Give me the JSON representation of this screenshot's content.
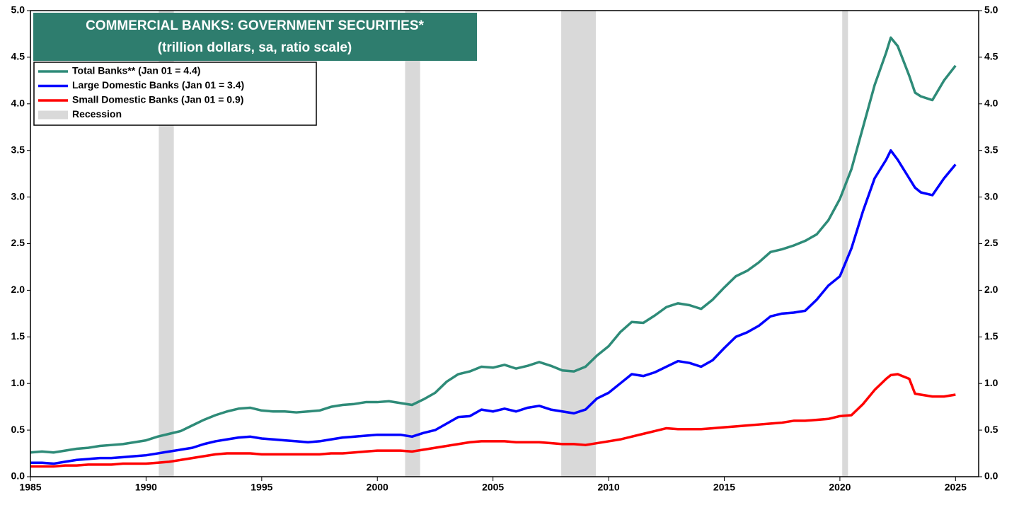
{
  "chart_data": {
    "type": "line",
    "title": "COMMERCIAL BANKS: GOVERNMENT SECURITIES*",
    "subtitle": "(trillion dollars, sa, ratio scale)",
    "x": [
      1985.0,
      1985.5,
      1986.0,
      1986.5,
      1987.0,
      1987.5,
      1988.0,
      1988.5,
      1989.0,
      1989.5,
      1990.0,
      1990.5,
      1991.0,
      1991.5,
      1992.0,
      1992.5,
      1993.0,
      1993.5,
      1994.0,
      1994.5,
      1995.0,
      1995.5,
      1996.0,
      1996.5,
      1997.0,
      1997.5,
      1998.0,
      1998.5,
      1999.0,
      1999.5,
      2000.0,
      2000.5,
      2001.0,
      2001.5,
      2002.0,
      2002.5,
      2003.0,
      2003.5,
      2004.0,
      2004.5,
      2005.0,
      2005.5,
      2006.0,
      2006.5,
      2007.0,
      2007.5,
      2008.0,
      2008.5,
      2009.0,
      2009.5,
      2010.0,
      2010.5,
      2011.0,
      2011.5,
      2012.0,
      2012.5,
      2013.0,
      2013.5,
      2014.0,
      2014.5,
      2015.0,
      2015.5,
      2016.0,
      2016.5,
      2017.0,
      2017.5,
      2018.0,
      2018.5,
      2019.0,
      2019.5,
      2020.0,
      2020.5,
      2021.0,
      2021.5,
      2022.0,
      2022.2,
      2022.5,
      2023.0,
      2023.25,
      2023.5,
      2024.0,
      2024.5,
      2025.0
    ],
    "series": [
      {
        "name": "Total Banks** (Jan 01 = 4.4)",
        "color": "#2e8b78",
        "values": [
          0.26,
          0.27,
          0.26,
          0.28,
          0.3,
          0.31,
          0.33,
          0.34,
          0.35,
          0.37,
          0.39,
          0.43,
          0.46,
          0.49,
          0.55,
          0.61,
          0.66,
          0.7,
          0.73,
          0.74,
          0.71,
          0.7,
          0.7,
          0.69,
          0.7,
          0.71,
          0.75,
          0.77,
          0.78,
          0.8,
          0.8,
          0.81,
          0.79,
          0.77,
          0.83,
          0.9,
          1.02,
          1.1,
          1.13,
          1.18,
          1.17,
          1.2,
          1.16,
          1.19,
          1.23,
          1.19,
          1.14,
          1.13,
          1.18,
          1.3,
          1.4,
          1.55,
          1.66,
          1.65,
          1.73,
          1.82,
          1.86,
          1.84,
          1.8,
          1.9,
          2.03,
          2.15,
          2.21,
          2.3,
          2.41,
          2.44,
          2.48,
          2.53,
          2.6,
          2.75,
          2.98,
          3.3,
          3.75,
          4.2,
          4.55,
          4.71,
          4.62,
          4.3,
          4.12,
          4.08,
          4.04,
          4.25,
          4.41
        ]
      },
      {
        "name": "Large Domestic Banks (Jan 01 = 3.4)",
        "color": "#0000ff",
        "values": [
          0.15,
          0.15,
          0.14,
          0.16,
          0.18,
          0.19,
          0.2,
          0.2,
          0.21,
          0.22,
          0.23,
          0.25,
          0.27,
          0.29,
          0.31,
          0.35,
          0.38,
          0.4,
          0.42,
          0.43,
          0.41,
          0.4,
          0.39,
          0.38,
          0.37,
          0.38,
          0.4,
          0.42,
          0.43,
          0.44,
          0.45,
          0.45,
          0.45,
          0.43,
          0.47,
          0.5,
          0.57,
          0.64,
          0.65,
          0.72,
          0.7,
          0.73,
          0.7,
          0.74,
          0.76,
          0.72,
          0.7,
          0.68,
          0.72,
          0.84,
          0.9,
          1.0,
          1.1,
          1.08,
          1.12,
          1.18,
          1.24,
          1.22,
          1.18,
          1.25,
          1.38,
          1.5,
          1.55,
          1.62,
          1.72,
          1.75,
          1.76,
          1.78,
          1.9,
          2.05,
          2.15,
          2.45,
          2.85,
          3.2,
          3.4,
          3.5,
          3.4,
          3.2,
          3.1,
          3.05,
          3.02,
          3.2,
          3.35
        ]
      },
      {
        "name": "Small Domestic Banks (Jan 01 = 0.9)",
        "color": "#ff0000",
        "values": [
          0.11,
          0.11,
          0.11,
          0.12,
          0.12,
          0.13,
          0.13,
          0.13,
          0.14,
          0.14,
          0.14,
          0.15,
          0.16,
          0.18,
          0.2,
          0.22,
          0.24,
          0.25,
          0.25,
          0.25,
          0.24,
          0.24,
          0.24,
          0.24,
          0.24,
          0.24,
          0.25,
          0.25,
          0.26,
          0.27,
          0.28,
          0.28,
          0.28,
          0.27,
          0.29,
          0.31,
          0.33,
          0.35,
          0.37,
          0.38,
          0.38,
          0.38,
          0.37,
          0.37,
          0.37,
          0.36,
          0.35,
          0.35,
          0.34,
          0.36,
          0.38,
          0.4,
          0.43,
          0.46,
          0.49,
          0.52,
          0.51,
          0.51,
          0.51,
          0.52,
          0.53,
          0.54,
          0.55,
          0.56,
          0.57,
          0.58,
          0.6,
          0.6,
          0.61,
          0.62,
          0.65,
          0.66,
          0.78,
          0.93,
          1.05,
          1.09,
          1.1,
          1.05,
          0.89,
          0.88,
          0.86,
          0.86,
          0.88
        ]
      }
    ],
    "recession_label": "Recession",
    "recession_color": "#d9d9d9",
    "recessions": [
      {
        "start": 1990.55,
        "end": 1991.2
      },
      {
        "start": 2001.2,
        "end": 2001.85
      },
      {
        "start": 2007.95,
        "end": 2009.45
      },
      {
        "start": 2020.1,
        "end": 2020.35
      }
    ],
    "xlim": [
      1985,
      2026
    ],
    "xticks": [
      1985,
      1990,
      1995,
      2000,
      2005,
      2010,
      2015,
      2020,
      2025
    ],
    "ylim": [
      0,
      5
    ],
    "yticks": [
      {
        "value": 0,
        "label": "0.0"
      },
      0.5,
      {
        "value": 1,
        "label": "1.0"
      },
      1.5,
      {
        "value": 2,
        "label": "2.0"
      },
      2.5,
      {
        "value": 3,
        "label": "3.0"
      },
      3.5,
      {
        "value": 4,
        "label": "4.0"
      },
      4.5,
      {
        "value": 5,
        "label": "5.0"
      }
    ],
    "y2lim": [
      0,
      5
    ],
    "y2ticks": [
      {
        "value": 0,
        "label": "0.0"
      },
      0.5,
      {
        "value": 1,
        "label": "1.0"
      },
      1.5,
      {
        "value": 2,
        "label": "2.0"
      },
      2.5,
      {
        "value": 3,
        "label": "3.0"
      },
      3.5,
      {
        "value": 4,
        "label": "4.0"
      },
      4.5,
      {
        "value": 5,
        "label": "5.0"
      }
    ],
    "title_color": "#2e7d6e"
  }
}
